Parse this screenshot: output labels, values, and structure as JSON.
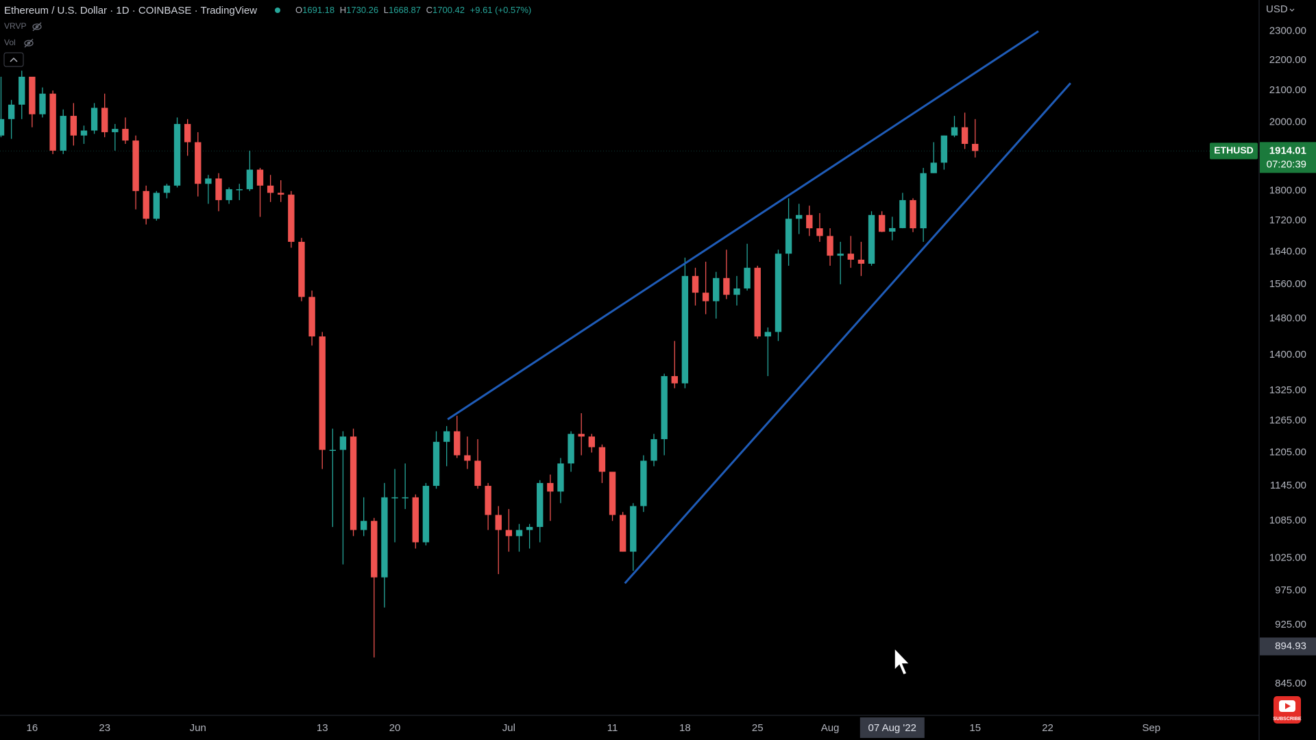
{
  "header": {
    "symbol_line": "Ethereum / U.S. Dollar · 1D · COINBASE · TradingView",
    "ohlc": [
      {
        "key": "O",
        "value": "1691.18"
      },
      {
        "key": "H",
        "value": "1730.26"
      },
      {
        "key": "L",
        "value": "1668.87"
      },
      {
        "key": "C",
        "value": "1700.42"
      }
    ],
    "change": "+9.61 (+0.57%)",
    "indicators": [
      "VRVP",
      "Vol"
    ]
  },
  "overlay": {
    "subscribe": "SUBSCRIBE"
  },
  "chart_data": {
    "type": "candlestick",
    "currency": "USD",
    "colors": {
      "up": "#26a69a",
      "down": "#ef5350",
      "trendline": "#1f5cb8"
    },
    "open": [
      1960,
      2010,
      2055,
      2145,
      2025,
      2090,
      1915,
      2020,
      1960,
      1975,
      2045,
      1970,
      1980,
      1945,
      1800,
      1725,
      1795,
      1815,
      1995,
      1940,
      1820,
      1835,
      1775,
      1805,
      1805,
      1860,
      1815,
      1795,
      1790,
      1665,
      1530,
      1440,
      1210,
      1210,
      1235,
      1070,
      1085,
      995,
      1125,
      1125,
      1125,
      1050,
      1145,
      1225,
      1245,
      1200,
      1190,
      1145,
      1095,
      1070,
      1060,
      1070,
      1075,
      1150,
      1135,
      1185,
      1240,
      1235,
      1215,
      1170,
      1095,
      1035,
      1110,
      1190,
      1230,
      1355,
      1340,
      1580,
      1540,
      1520,
      1575,
      1535,
      1550,
      1600,
      1440,
      1450,
      1635,
      1725,
      1735,
      1700,
      1680,
      1630,
      1635,
      1620,
      1610,
      1735,
      1691.18,
      1700.42,
      1775,
      1700,
      1850,
      1880,
      1960,
      1985,
      1935
    ],
    "high": [
      2145,
      2070,
      2165,
      2145,
      2110,
      2100,
      2040,
      2060,
      1990,
      2060,
      2090,
      1995,
      2015,
      1960,
      1815,
      1800,
      1820,
      2015,
      2010,
      1970,
      1845,
      1850,
      1810,
      1820,
      1915,
      1865,
      1845,
      1830,
      1800,
      1675,
      1545,
      1450,
      1250,
      1245,
      1250,
      1125,
      1090,
      1150,
      1175,
      1185,
      1130,
      1150,
      1245,
      1255,
      1275,
      1235,
      1230,
      1150,
      1110,
      1105,
      1080,
      1080,
      1155,
      1165,
      1195,
      1245,
      1280,
      1240,
      1220,
      1170,
      1100,
      1115,
      1200,
      1240,
      1360,
      1430,
      1625,
      1600,
      1615,
      1590,
      1645,
      1580,
      1660,
      1605,
      1460,
      1645,
      1780,
      1765,
      1760,
      1740,
      1700,
      1665,
      1680,
      1665,
      1745,
      1745,
      1730.26,
      1795,
      1780,
      1865,
      1940,
      1960,
      2020,
      2030,
      2010
    ],
    "low": [
      1955,
      1950,
      2010,
      1985,
      2015,
      1905,
      1905,
      1930,
      1935,
      1965,
      1955,
      1915,
      1935,
      1750,
      1710,
      1720,
      1780,
      1810,
      1900,
      1785,
      1765,
      1745,
      1765,
      1775,
      1800,
      1730,
      1770,
      1770,
      1650,
      1520,
      1420,
      1175,
      1075,
      1015,
      1060,
      1060,
      880,
      950,
      1050,
      1105,
      1040,
      1045,
      1140,
      1180,
      1195,
      1175,
      1140,
      1070,
      1000,
      1035,
      1035,
      1040,
      1050,
      1085,
      1115,
      1170,
      1200,
      1205,
      1150,
      1085,
      1035,
      1005,
      1100,
      1180,
      1200,
      1330,
      1330,
      1510,
      1490,
      1480,
      1525,
      1510,
      1545,
      1435,
      1355,
      1430,
      1605,
      1685,
      1680,
      1665,
      1605,
      1560,
      1600,
      1580,
      1605,
      1690,
      1668.87,
      1700,
      1690,
      1665,
      1850,
      1860,
      1955,
      1920,
      1895
    ],
    "close": [
      2010,
      2055,
      2145,
      2025,
      2090,
      1915,
      2020,
      1960,
      1975,
      2045,
      1970,
      1980,
      1945,
      1800,
      1725,
      1795,
      1815,
      1995,
      1940,
      1820,
      1835,
      1775,
      1805,
      1805,
      1860,
      1815,
      1795,
      1790,
      1665,
      1530,
      1440,
      1210,
      1210,
      1235,
      1070,
      1085,
      995,
      1125,
      1125,
      1125,
      1050,
      1145,
      1225,
      1245,
      1200,
      1190,
      1145,
      1095,
      1070,
      1060,
      1070,
      1075,
      1150,
      1135,
      1185,
      1240,
      1235,
      1215,
      1170,
      1095,
      1035,
      1110,
      1190,
      1230,
      1355,
      1340,
      1580,
      1540,
      1520,
      1575,
      1535,
      1550,
      1600,
      1440,
      1450,
      1635,
      1725,
      1735,
      1700,
      1680,
      1630,
      1635,
      1620,
      1610,
      1735,
      1690.81,
      1700.42,
      1775,
      1700,
      1850,
      1880,
      1960,
      1985,
      1935,
      1914.01
    ],
    "xlim": [
      -0.1,
      121.4
    ],
    "xticks": [
      {
        "value": 3,
        "label": "16"
      },
      {
        "value": 10,
        "label": "23"
      },
      {
        "value": 19,
        "label": "Jun"
      },
      {
        "value": 31,
        "label": "13"
      },
      {
        "value": 38,
        "label": "20"
      },
      {
        "value": 49,
        "label": "Jul"
      },
      {
        "value": 59,
        "label": "11"
      },
      {
        "value": 66,
        "label": "18"
      },
      {
        "value": 73,
        "label": "25"
      },
      {
        "value": 80,
        "label": "Aug"
      },
      {
        "value": 94,
        "label": "15"
      },
      {
        "value": 101,
        "label": "22"
      },
      {
        "value": 111,
        "label": "Sep"
      }
    ],
    "ylim": [
      806,
      2413
    ],
    "log_scale": true,
    "grid": false,
    "yticks": [
      {
        "value": 845,
        "label": "845.00"
      },
      {
        "value": 925,
        "label": "925.00"
      },
      {
        "value": 975,
        "label": "975.00"
      },
      {
        "value": 1025,
        "label": "1025.00"
      },
      {
        "value": 1085,
        "label": "1085.00"
      },
      {
        "value": 1145,
        "label": "1145.00"
      },
      {
        "value": 1205,
        "label": "1205.00"
      },
      {
        "value": 1265,
        "label": "1265.00"
      },
      {
        "value": 1325,
        "label": "1325.00"
      },
      {
        "value": 1400,
        "label": "1400.00"
      },
      {
        "value": 1480,
        "label": "1480.00"
      },
      {
        "value": 1560,
        "label": "1560.00"
      },
      {
        "value": 1640,
        "label": "1640.00"
      },
      {
        "value": 1720,
        "label": "1720.00"
      },
      {
        "value": 1800,
        "label": "1800.00"
      },
      {
        "value": 2000,
        "label": "2000.00"
      },
      {
        "value": 2100,
        "label": "2100.00"
      },
      {
        "value": 2200,
        "label": "2200.00"
      },
      {
        "value": 2300,
        "label": "2300.00"
      }
    ],
    "trendlines": [
      {
        "x": [
          43.1,
          100.1
        ],
        "y": [
          1268,
          2300
        ]
      },
      {
        "x": [
          60.2,
          103.2
        ],
        "y": [
          986,
          2124
        ]
      }
    ],
    "last_price": {
      "symbol": "ETHUSD",
      "value": 1914.01,
      "countdown": "07:20:39"
    },
    "crosshair": {
      "x": 86,
      "x_label": "07 Aug '22",
      "y": 894.93
    }
  }
}
